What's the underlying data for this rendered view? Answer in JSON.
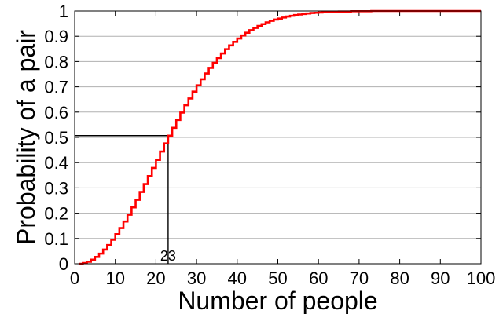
{
  "chart_data": {
    "type": "line",
    "title": "",
    "xlabel": "Number of people",
    "ylabel": "Probability of a pair",
    "xlim": [
      0,
      100
    ],
    "ylim": [
      0,
      1
    ],
    "xticks": [
      "0",
      "10",
      "20",
      "30",
      "40",
      "50",
      "60",
      "70",
      "80",
      "90",
      "100"
    ],
    "yticks": [
      "0",
      "0.1",
      "0.2",
      "0.3",
      "0.4",
      "0.5",
      "0.6",
      "0.7",
      "0.8",
      "0.9",
      "1"
    ],
    "grid": "horizontal",
    "step": true,
    "series": [
      {
        "color": "#ff0000",
        "x": [
          1,
          2,
          3,
          4,
          5,
          6,
          7,
          8,
          9,
          10,
          11,
          12,
          13,
          14,
          15,
          16,
          17,
          18,
          19,
          20,
          21,
          22,
          23,
          24,
          25,
          26,
          27,
          28,
          29,
          30,
          31,
          32,
          33,
          34,
          35,
          36,
          37,
          38,
          39,
          40,
          41,
          42,
          43,
          44,
          45,
          46,
          47,
          48,
          49,
          50,
          51,
          52,
          53,
          54,
          55,
          56,
          57,
          58,
          59,
          60,
          61,
          62,
          63,
          64,
          65,
          66,
          67,
          68,
          69,
          70,
          71,
          72,
          73,
          74,
          75,
          76,
          77,
          78,
          79,
          80,
          81,
          82,
          83,
          84,
          85,
          86,
          87,
          88,
          89,
          90,
          91,
          92,
          93,
          94,
          95,
          96,
          97,
          98,
          99,
          100
        ],
        "y": [
          0.0,
          0.003,
          0.008,
          0.016,
          0.027,
          0.04,
          0.056,
          0.074,
          0.095,
          0.117,
          0.141,
          0.167,
          0.194,
          0.223,
          0.253,
          0.284,
          0.315,
          0.347,
          0.379,
          0.411,
          0.444,
          0.476,
          0.507,
          0.538,
          0.569,
          0.598,
          0.627,
          0.654,
          0.681,
          0.706,
          0.73,
          0.753,
          0.775,
          0.795,
          0.814,
          0.832,
          0.849,
          0.864,
          0.878,
          0.891,
          0.903,
          0.914,
          0.924,
          0.933,
          0.941,
          0.948,
          0.955,
          0.961,
          0.966,
          0.97,
          0.974,
          0.978,
          0.981,
          0.984,
          0.986,
          0.988,
          0.99,
          0.992,
          0.993,
          0.994,
          0.995,
          0.996,
          0.997,
          0.997,
          0.998,
          0.998,
          0.998,
          0.999,
          0.999,
          0.999,
          0.999,
          0.999,
          1.0,
          1.0,
          1.0,
          1.0,
          1.0,
          1.0,
          1.0,
          1.0,
          1.0,
          1.0,
          1.0,
          1.0,
          1.0,
          1.0,
          1.0,
          1.0,
          1.0,
          1.0,
          1.0,
          1.0,
          1.0,
          1.0,
          1.0,
          1.0,
          1.0,
          1.0,
          1.0,
          1.0
        ]
      }
    ],
    "annotation": {
      "label": "23",
      "x": 23,
      "y": 0.507
    }
  }
}
